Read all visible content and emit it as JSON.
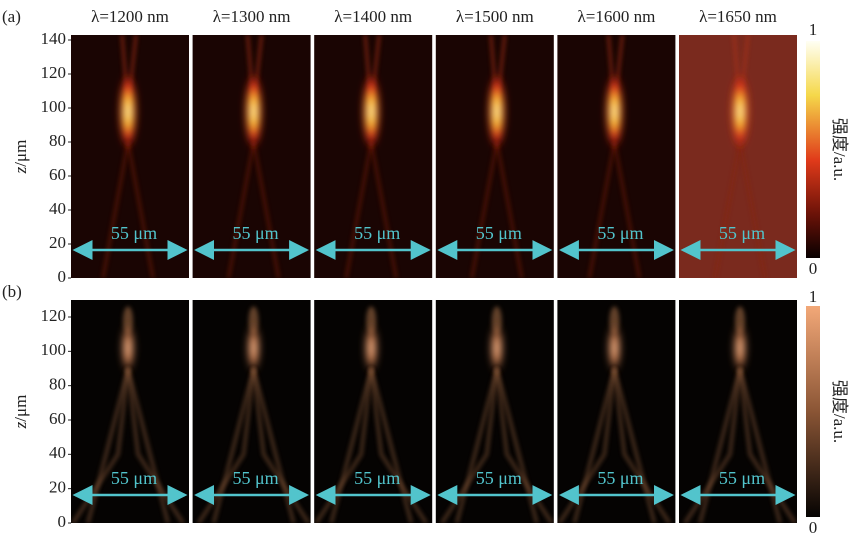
{
  "panels": [
    {
      "label": "(a)",
      "axis": {
        "variable": "z",
        "unit": "/μm",
        "ticks": [
          0,
          20,
          40,
          60,
          80,
          100,
          120,
          140
        ]
      },
      "columns": [
        {
          "title": "λ=1200 nm",
          "scale": "55 μm"
        },
        {
          "title": "λ=1300 nm",
          "scale": "55 μm"
        },
        {
          "title": "λ=1400 nm",
          "scale": "55 μm"
        },
        {
          "title": "λ=1500 nm",
          "scale": "55 μm"
        },
        {
          "title": "λ=1600 nm",
          "scale": "55 μm"
        },
        {
          "title": "λ=1650 nm",
          "scale": "55 μm"
        }
      ],
      "colorbar": {
        "label": "强度/a.u.",
        "max": "1",
        "min": "0"
      }
    },
    {
      "label": "(b)",
      "axis": {
        "variable": "z",
        "unit": "/μm",
        "ticks": [
          0,
          20,
          40,
          60,
          80,
          100,
          120
        ]
      },
      "columns": [
        {
          "scale": "55 μm"
        },
        {
          "scale": "55 μm"
        },
        {
          "scale": "55 μm"
        },
        {
          "scale": "55 μm"
        },
        {
          "scale": "55 μm"
        },
        {
          "scale": "55 μm"
        }
      ],
      "colorbar": {
        "label": "强度/a.u.",
        "max": "1",
        "min": "0"
      }
    }
  ]
}
